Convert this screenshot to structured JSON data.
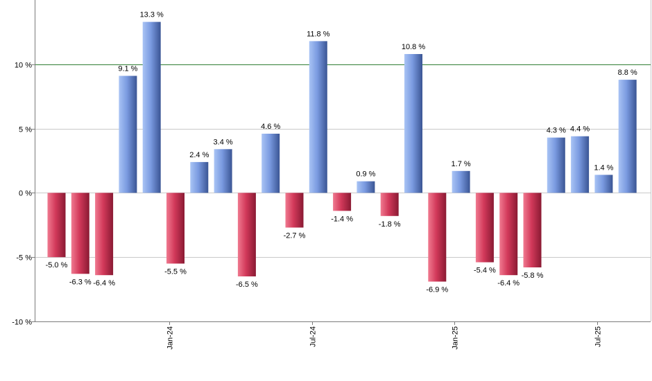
{
  "chart_data": {
    "type": "bar",
    "title": "",
    "xlabel": "",
    "ylabel": "",
    "ylim": [
      -10,
      15
    ],
    "y_ticks": [
      {
        "value": 10,
        "label": "10 %"
      },
      {
        "value": 5,
        "label": "5 %"
      },
      {
        "value": 0,
        "label": "0 %"
      },
      {
        "value": -5,
        "label": "-5 %"
      },
      {
        "value": -10,
        "label": "-10 %"
      }
    ],
    "x_ticks": [
      {
        "index": 5,
        "label": "Jan-24"
      },
      {
        "index": 11,
        "label": "Jul-24"
      },
      {
        "index": 17,
        "label": "Jan-25"
      },
      {
        "index": 23,
        "label": "Jul-25"
      }
    ],
    "values": [
      -5.0,
      -6.3,
      -6.4,
      9.1,
      13.3,
      -5.5,
      2.4,
      3.4,
      -6.5,
      4.6,
      -2.7,
      11.8,
      -1.4,
      0.9,
      -1.8,
      10.8,
      -6.9,
      1.7,
      -5.4,
      -6.4,
      -5.8,
      4.3,
      4.4,
      1.4,
      8.8
    ],
    "labels": [
      "-5.0 %",
      "-6.3 %",
      "-6.4 %",
      "9.1 %",
      "13.3 %",
      "-5.5 %",
      "2.4 %",
      "3.4 %",
      "-6.5 %",
      "4.6 %",
      "-2.7 %",
      "11.8 %",
      "-1.4 %",
      "0.9 %",
      "-1.8 %",
      "10.8 %",
      "-6.9 %",
      "1.7 %",
      "-5.4 %",
      "-6.4 %",
      "-5.8 %",
      "4.3 %",
      "4.4 %",
      "1.4 %",
      "8.8 %"
    ],
    "reference_line": {
      "value": 10,
      "color": "#2e7d32"
    },
    "grid": true,
    "colors": {
      "positive": "#6d8fdc",
      "negative": "#d2395a",
      "grid": "#c8c8c8",
      "axis": "#7a7a7a"
    }
  }
}
